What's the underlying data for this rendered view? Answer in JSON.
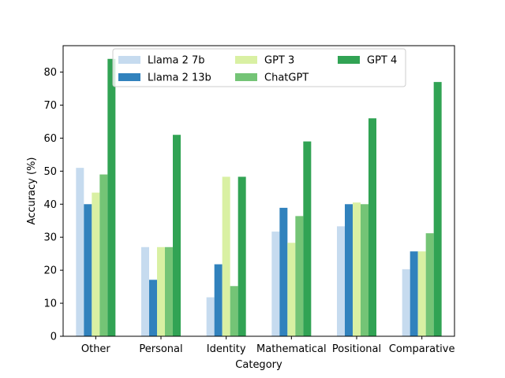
{
  "chart_data": {
    "type": "bar",
    "title": "",
    "xlabel": "Category",
    "ylabel": "Accuracy (%)",
    "ylim": [
      0,
      88
    ],
    "yticks": [
      0,
      10,
      20,
      30,
      40,
      50,
      60,
      70,
      80
    ],
    "legend_position": "top-center",
    "categories": [
      "Other",
      "Personal",
      "Identity",
      "Mathematical",
      "Positional",
      "Comparative"
    ],
    "series": [
      {
        "name": "Llama 2 7b",
        "color": "#c6dbef",
        "values": [
          51,
          27,
          11.8,
          31.7,
          33.3,
          20.3
        ]
      },
      {
        "name": "Llama 2 13b",
        "color": "#3182bd",
        "values": [
          40,
          17.1,
          21.8,
          38.9,
          40,
          25.7
        ]
      },
      {
        "name": "GPT 3",
        "color": "#d9f0a3",
        "values": [
          43.5,
          27,
          48.3,
          28.3,
          40.5,
          25.7
        ]
      },
      {
        "name": "ChatGPT",
        "color": "#74c476",
        "values": [
          49,
          27,
          15.2,
          36.4,
          40,
          31.2
        ]
      },
      {
        "name": "GPT 4",
        "color": "#31a354",
        "values": [
          84,
          61,
          48.3,
          59,
          66,
          77
        ]
      }
    ]
  }
}
